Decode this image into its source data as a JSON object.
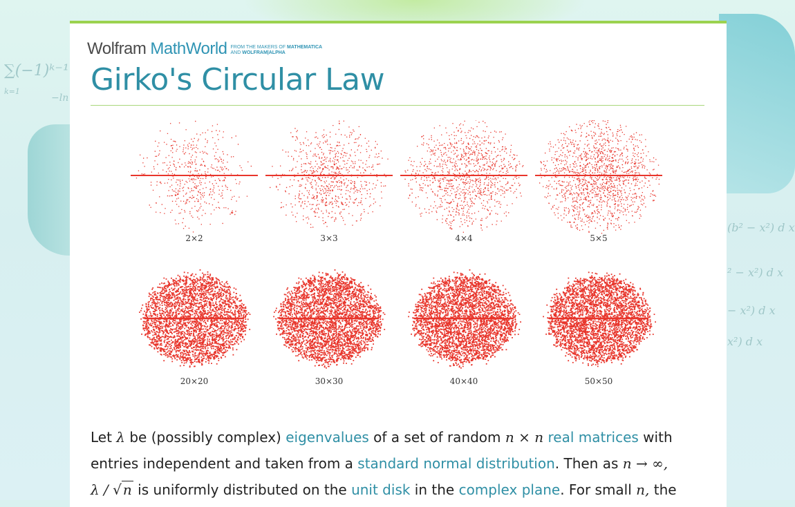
{
  "brand": {
    "wolfram": "Wolfram",
    "mathworld": "MathWorld",
    "tagline_line1": "FROM THE MAKERS OF ",
    "tagline_bold1": "MATHEMATICA",
    "tagline_line2": "AND ",
    "tagline_bold2": "WOLFRAM|ALPHA"
  },
  "page": {
    "title": "Girko's Circular Law"
  },
  "figure": {
    "panels": [
      {
        "label": "2×2",
        "n": 2
      },
      {
        "label": "3×3",
        "n": 3
      },
      {
        "label": "4×4",
        "n": 4
      },
      {
        "label": "5×5",
        "n": 5
      },
      {
        "label": "20×20",
        "n": 20
      },
      {
        "label": "30×30",
        "n": 30
      },
      {
        "label": "40×40",
        "n": 40
      },
      {
        "label": "50×50",
        "n": 50
      }
    ],
    "dot_color": "#e8352b"
  },
  "text": {
    "p1_let": "Let ",
    "lambda": "λ",
    "p1_be": " be (possibly complex) ",
    "link_eigenvalues": "eigenvalues",
    "p1_set": " of a set of random ",
    "nxn": "n × n",
    "link_real_matrices": "real matrices",
    "p1_with": " with",
    "p2_entries": "entries independent and taken from a ",
    "link_standard_normal": "standard normal distribution",
    "p2_then": ". Then as ",
    "n_inf": "n → ∞,",
    "p3_lambda": "λ / ",
    "p3_sqrt_sym": "√",
    "p3_n": "n",
    "p3_uniform": "  is uniformly distributed on the ",
    "link_unit_disk": "unit disk",
    "p3_in": " in the ",
    "link_complex_plane": "complex plane",
    "p3_small": ". For small ",
    "p3_n2": "n,",
    "p3_the": " the"
  },
  "background": {
    "formula_sum": "∑(−1)ᵏ⁻¹",
    "formula_k1": "k=1",
    "formula_ln": "−ln",
    "formula_r1": "(b² − x²)  d x",
    "formula_r2": "² − x²)  d x",
    "formula_r3": "− x²)  d x",
    "formula_r4": "x²)  d x"
  }
}
